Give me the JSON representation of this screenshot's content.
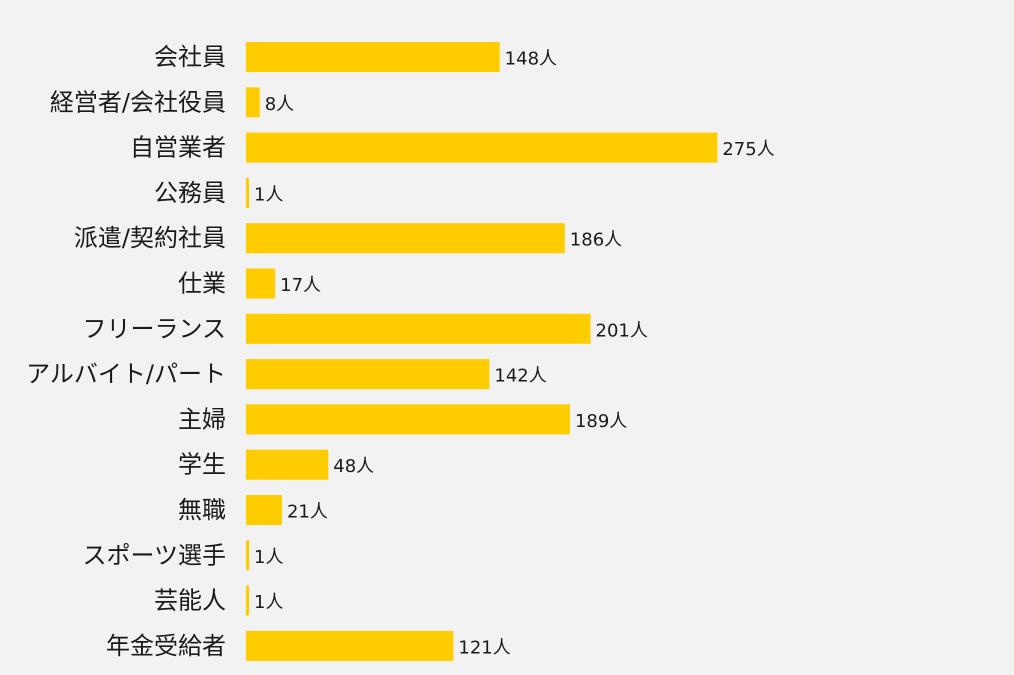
{
  "colors": {
    "background": "#f2f2f2",
    "bar": "#ffcc00",
    "text": "#1a1a1a"
  },
  "chart_data": {
    "type": "bar",
    "orientation": "horizontal",
    "title": "",
    "xlabel": "",
    "ylabel": "",
    "grid": false,
    "legend": "none",
    "value_suffix": "人",
    "categories": [
      "会社員",
      "経営者/会社役員",
      "自営業者",
      "公務員",
      "派遣/契約社員",
      "仕業",
      "フリーランス",
      "アルバイト/パート",
      "主婦",
      "学生",
      "無職",
      "スポーツ選手",
      "芸能人",
      "年金受給者"
    ],
    "values": [
      148,
      8,
      275,
      1,
      186,
      17,
      201,
      142,
      189,
      48,
      21,
      1,
      1,
      121
    ],
    "value_labels": [
      "148人",
      "8人",
      "275人",
      "1人",
      "186人",
      "17人",
      "201人",
      "142人",
      "189人",
      "48人",
      "21人",
      "1人",
      "1人",
      "121人"
    ]
  }
}
